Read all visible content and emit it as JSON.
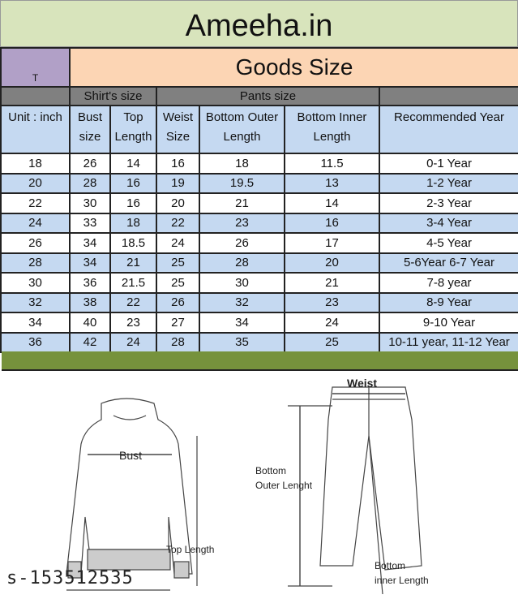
{
  "title": "Ameeha.in",
  "corner_label": "T",
  "goods_title": "Goods Size",
  "groups": {
    "shirt": "Shirt's size",
    "pants": "Pants size"
  },
  "headers": [
    "Unit : inch",
    "Bust size",
    "Top Length",
    "Weist Size",
    "Bottom Outer Length",
    "Bottom Inner Length",
    "Recommended Year"
  ],
  "rows": [
    [
      "18",
      "26",
      "14",
      "16",
      "18",
      "11.5",
      "0-1 Year"
    ],
    [
      "20",
      "28",
      "16",
      "19",
      "19.5",
      "13",
      "1-2 Year"
    ],
    [
      "22",
      "30",
      "16",
      "20",
      "21",
      "14",
      "2-3 Year"
    ],
    [
      "24",
      "33",
      "18",
      "22",
      "23",
      "16",
      "3-4 Year"
    ],
    [
      "26",
      "34",
      "18.5",
      "24",
      "26",
      "17",
      "4-5 Year"
    ],
    [
      "28",
      "34",
      "21",
      "25",
      "28",
      "20",
      "5-6Year 6-7 Year"
    ],
    [
      "30",
      "36",
      "21.5",
      "25",
      "30",
      "21",
      "7-8 year"
    ],
    [
      "32",
      "38",
      "22",
      "26",
      "32",
      "23",
      "8-9 Year"
    ],
    [
      "34",
      "40",
      "23",
      "27",
      "34",
      "24",
      "9-10 Year"
    ],
    [
      "36",
      "42",
      "24",
      "28",
      "35",
      "25",
      "10-11 year, 11-12 Year"
    ]
  ],
  "diagram": {
    "bust": "Bust",
    "top_length": "Top Length",
    "weist": "Weist",
    "bottom_outer_1": "Bottom",
    "bottom_outer_2": "Outer Lenght",
    "bottom_inner_1": "Bottom",
    "bottom_inner_2": "inner Length"
  },
  "watermark_id": "s-153512535"
}
